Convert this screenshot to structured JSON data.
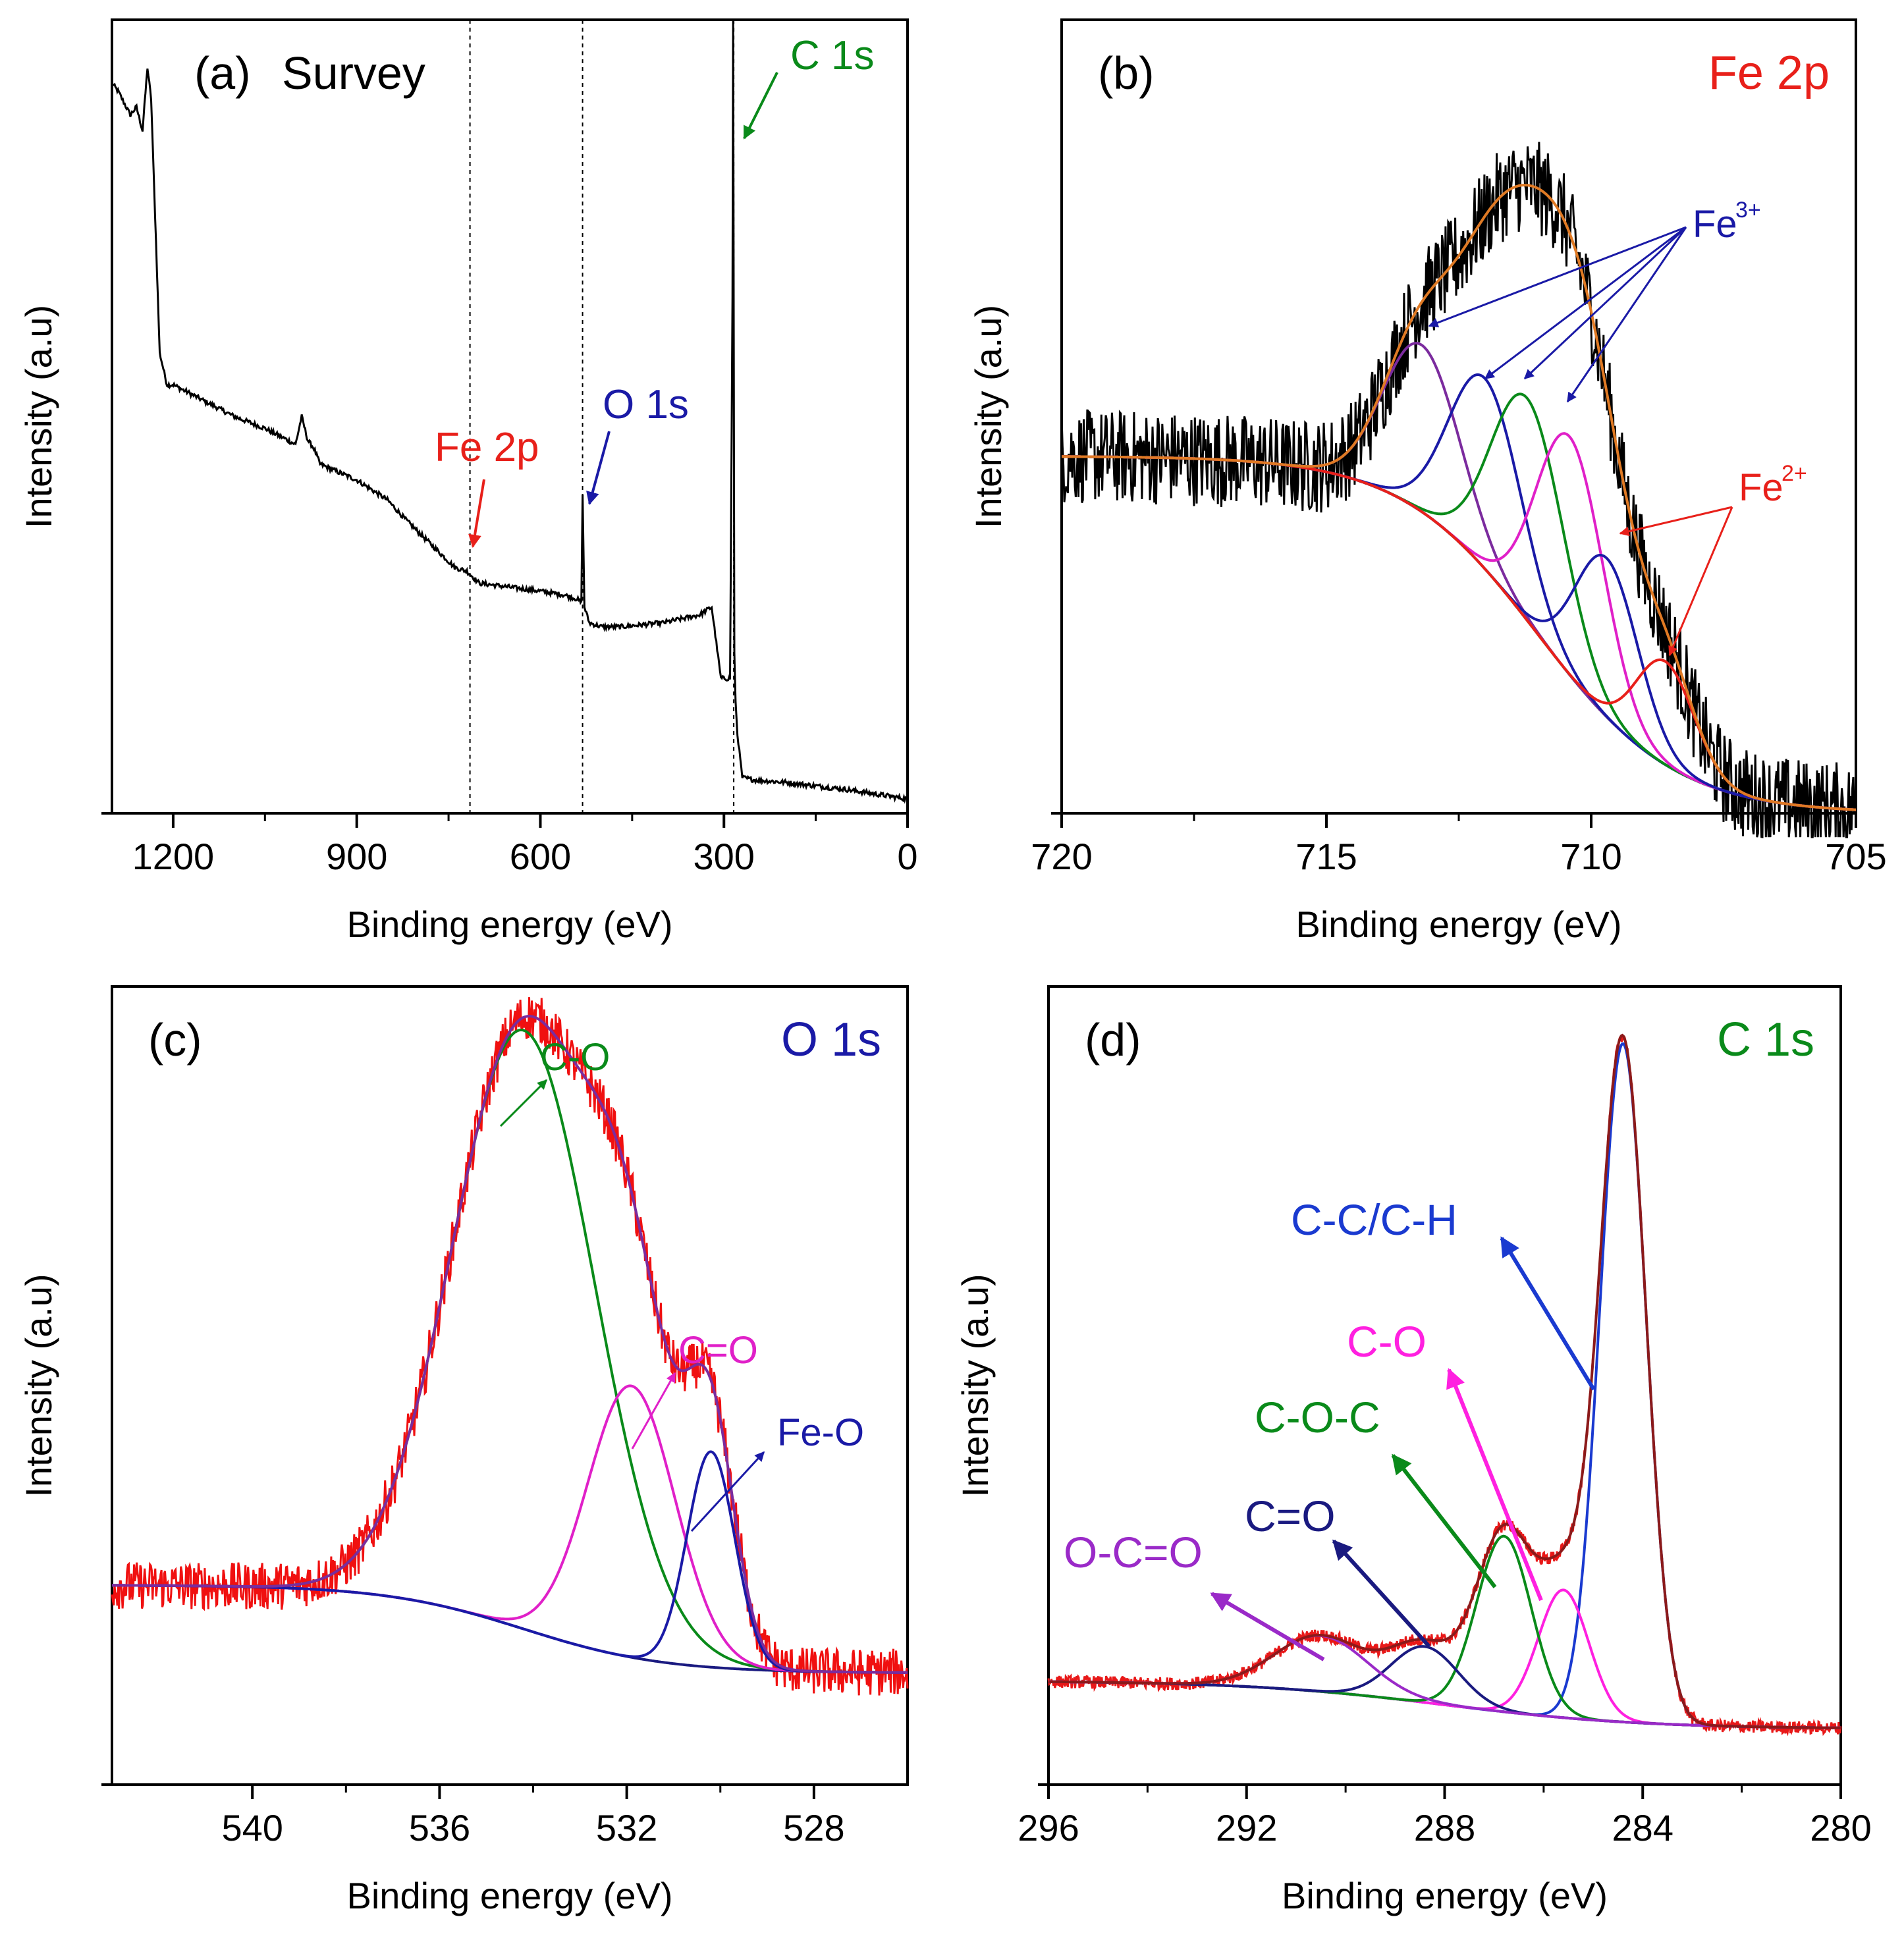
{
  "figure": {
    "panels": [
      "(a) Survey",
      "(b) Fe 2p",
      "(c) O 1s",
      "(d) C 1s"
    ]
  },
  "chart_data": [
    {
      "id": "a",
      "type": "line",
      "letter": "(a)",
      "title": "Survey",
      "xlabel": "Binding energy (eV)",
      "ylabel": "Intensity (a.u)",
      "xlim": [
        1300,
        0
      ],
      "ylim": [
        0,
        100
      ],
      "xticks": [
        1200,
        900,
        600,
        300,
        0
      ],
      "xtick_labels": [
        "1200",
        "900",
        "600",
        "300",
        "0"
      ],
      "colors": {
        "data": "#000000",
        "Fe 2p": "#e8201a",
        "O 1s": "#1a1aa6",
        "C 1s": "#0a8a1a"
      },
      "vlines": [
        715,
        531,
        284
      ],
      "series": [
        {
          "name": "Survey spectrum",
          "color": "#000000",
          "x": [
            1300,
            1290,
            1270,
            1260,
            1250,
            1242,
            1236,
            1228,
            1222,
            1210,
            1200,
            1150,
            1100,
            1050,
            1000,
            990,
            980,
            970,
            960,
            900,
            850,
            820,
            780,
            740,
            720,
            700,
            650,
            600,
            560,
            540,
            533,
            531,
            528,
            520,
            500,
            470,
            400,
            340,
            320,
            305,
            290,
            286,
            285,
            283,
            281,
            278,
            270,
            250,
            200,
            100,
            0
          ],
          "y": [
            92,
            91,
            88,
            89,
            86,
            94,
            90,
            72,
            58,
            54,
            54,
            52,
            50,
            48.5,
            46.5,
            50,
            47,
            46,
            44,
            42,
            39.5,
            37,
            34,
            31,
            30.5,
            29,
            28.5,
            28,
            27.5,
            27,
            26.5,
            40,
            26,
            24,
            23.5,
            23.5,
            24,
            25,
            26,
            17,
            17,
            65,
            100,
            20,
            14,
            10,
            4.5,
            4.2,
            3.9,
            3,
            1.8
          ]
        }
      ],
      "annotations": [
        {
          "text": "Fe 2p",
          "color": "#e8201a",
          "x": 715
        },
        {
          "text": "O 1s",
          "color": "#1a1aa6",
          "x": 531
        },
        {
          "text": "C 1s",
          "color": "#0a8a1a",
          "x": 284
        }
      ]
    },
    {
      "id": "b",
      "type": "line",
      "letter": "(b)",
      "title": "Fe 2p",
      "xlabel": "Binding energy (eV)",
      "ylabel": "Intensity (a.u)",
      "xlim": [
        720,
        705
      ],
      "ylim": [
        0,
        100
      ],
      "xticks": [
        720,
        715,
        710,
        705
      ],
      "xtick_labels": [
        "720",
        "715",
        "710",
        "705"
      ],
      "colors": {
        "title": "#e8201a",
        "Fe3+": "#1a1aa6",
        "Fe2+": "#e8201a",
        "envelope": "#e07a24",
        "background": "#20b43c"
      },
      "peaks": [
        {
          "name": "Fe3+ 713.2",
          "color": "#7b2b9e",
          "center": 713.2,
          "height": 21,
          "fwhm": 1.7
        },
        {
          "name": "Fe3+ 712.0",
          "color": "#1a1aa6",
          "center": 712.0,
          "height": 24,
          "fwhm": 1.6
        },
        {
          "name": "Fe3+ 711.2",
          "color": "#0a8a1a",
          "center": 711.2,
          "height": 28,
          "fwhm": 1.6
        },
        {
          "name": "Fe3+ 710.4",
          "color": "#e020c8",
          "center": 710.4,
          "height": 30,
          "fwhm": 1.5
        },
        {
          "name": "Fe2+ 709.7",
          "color": "#1a1aa6",
          "center": 709.7,
          "height": 20,
          "fwhm": 1.4
        },
        {
          "name": "Fe2+ 708.6",
          "color": "#e8201a",
          "center": 708.6,
          "height": 13,
          "fwhm": 1.3
        }
      ],
      "baseline": {
        "low": 0,
        "high": 45,
        "center": 711.0,
        "width": 1.3
      },
      "noise": 6,
      "annotations": [
        {
          "text": "Fe",
          "sup": "3+",
          "color": "#1a1aa6"
        },
        {
          "text": "Fe",
          "sup": "2+",
          "color": "#e8201a"
        }
      ]
    },
    {
      "id": "c",
      "type": "line",
      "letter": "(c)",
      "title": "O 1s",
      "xlabel": "Binding energy (eV)",
      "ylabel": "Intensity (a.u)",
      "xlim": [
        543,
        526
      ],
      "ylim": [
        0,
        100
      ],
      "xticks": [
        540,
        536,
        532,
        528
      ],
      "xtick_labels": [
        "540",
        "536",
        "532",
        "528"
      ],
      "colors": {
        "title": "#1a1aa6",
        "data": "#f01010",
        "envelope": "#7b2b9e",
        "baseline": "#1a1a80"
      },
      "peaks": [
        {
          "name": "C-O",
          "color": "#0a8a1a",
          "center": 534.2,
          "height": 75,
          "fwhm": 3.6
        },
        {
          "name": "C=O",
          "color": "#e020c8",
          "center": 531.9,
          "height": 34,
          "fwhm": 2.2
        },
        {
          "name": "Fe-O",
          "color": "#1a1aa6",
          "center": 530.2,
          "height": 27,
          "fwhm": 1.2
        }
      ],
      "baseline": {
        "low": 14,
        "high": 25,
        "center": 534.2,
        "width": 1.5
      },
      "noise": 3,
      "annotations": [
        {
          "text": "C-O",
          "color": "#0a8a1a"
        },
        {
          "text": "C=O",
          "color": "#e020c8"
        },
        {
          "text": "Fe-O",
          "color": "#1a1aa6"
        }
      ]
    },
    {
      "id": "d",
      "type": "line",
      "letter": "(d)",
      "title": "C 1s",
      "xlabel": "Binding energy (eV)",
      "ylabel": "Intensity (a.u)",
      "xlim": [
        296,
        280
      ],
      "ylim": [
        0,
        100
      ],
      "xticks": [
        296,
        292,
        288,
        284,
        280
      ],
      "xtick_labels": [
        "296",
        "292",
        "288",
        "284",
        "280"
      ],
      "colors": {
        "title": "#0a8a1a",
        "data": "#e81818",
        "envelope": "#8b1a1a",
        "baseline": "#7b2b9e"
      },
      "peaks": [
        {
          "name": "C-C/C-H",
          "color": "#1a3ad0",
          "center": 284.4,
          "height": 85,
          "fwhm": 1.1
        },
        {
          "name": "C-O",
          "color": "#ff20e0",
          "center": 285.6,
          "height": 16,
          "fwhm": 1.2
        },
        {
          "name": "C-O-C",
          "color": "#0a8a1a",
          "center": 286.8,
          "height": 22,
          "fwhm": 1.3
        },
        {
          "name": "C=O",
          "color": "#1a1a80",
          "center": 288.4,
          "height": 7,
          "fwhm": 1.6
        },
        {
          "name": "O-C=O",
          "color": "#9a2ac8",
          "center": 290.5,
          "height": 7,
          "fwhm": 2.2
        }
      ],
      "baseline": {
        "low": 7,
        "high": 13,
        "center": 288.0,
        "width": 2.0
      },
      "noise": 0.8,
      "annotations": [
        {
          "text": "C-C/C-H",
          "color": "#1a3ad0"
        },
        {
          "text": "C-O",
          "color": "#ff20e0"
        },
        {
          "text": "C-O-C",
          "color": "#0a8a1a"
        },
        {
          "text": "C=O",
          "color": "#1a1a80"
        },
        {
          "text": "O-C=O",
          "color": "#9a2ac8"
        }
      ]
    }
  ]
}
